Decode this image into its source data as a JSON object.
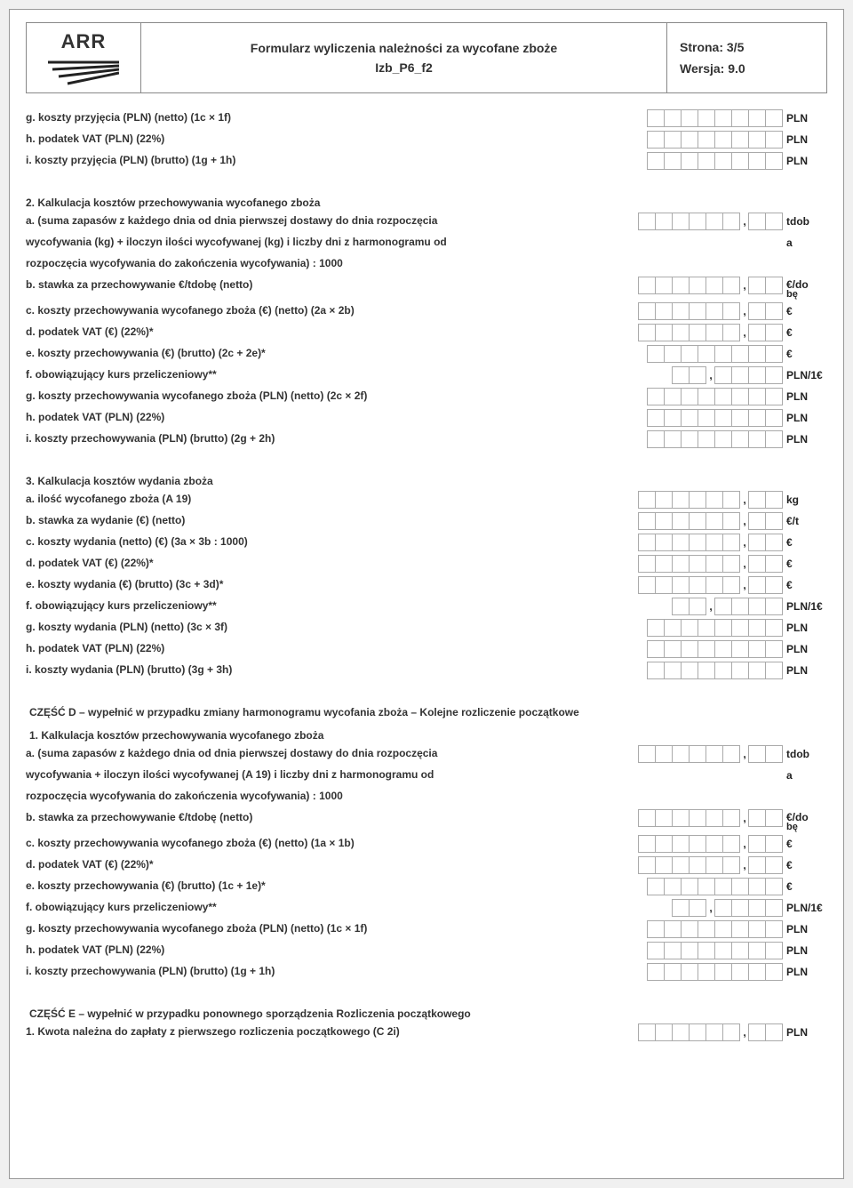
{
  "header": {
    "logo_text": "ARR",
    "title_line1": "Formularz wyliczenia należności za wycofane zboże",
    "title_line2": "Izb_P6_f2",
    "page_label": "Strona: 3/5",
    "version_label": "Wersja: 9.0"
  },
  "s1": {
    "g": "g. koszty przyjęcia (PLN) (netto) (1c × 1f)",
    "h": "h. podatek VAT (PLN) (22%)",
    "i": "i. koszty przyjęcia (PLN) (brutto) (1g + 1h)"
  },
  "s2": {
    "heading": "2. Kalkulacja kosztów przechowywania wycofanego zboża",
    "a1": "a. (suma zapasów z każdego dnia od dnia pierwszej dostawy do dnia rozpoczęcia",
    "a2": "wycofywania (kg) + iloczyn ilości wycofywanej (kg) i liczby dni z harmonogramu od",
    "a3": "rozpoczęcia wycofywania do zakończenia wycofywania) : 1000",
    "b": "b. stawka za przechowywanie €/tdobę (netto)",
    "c": "c. koszty przechowywania wycofanego zboża (€) (netto) (2a × 2b)",
    "d": "d. podatek VAT (€) (22%)*",
    "e": "e. koszty przechowywania (€) (brutto) (2c + 2e)*",
    "f": "f. obowiązujący kurs przeliczeniowy**",
    "g": "g. koszty przechowywania wycofanego zboża (PLN) (netto) (2c × 2f)",
    "h": "h. podatek VAT (PLN) (22%)",
    "i": "i. koszty przechowywania (PLN) (brutto) (2g + 2h)"
  },
  "s3": {
    "heading": "3. Kalkulacja kosztów wydania zboża",
    "a": "a. ilość wycofanego zboża (A 19)",
    "b": "b. stawka za wydanie (€) (netto)",
    "c": "c. koszty wydania (netto) (€) (3a × 3b : 1000)",
    "d": "d. podatek VAT (€) (22%)*",
    "e": "e. koszty wydania (€) (brutto) (3c + 3d)*",
    "f": "f. obowiązujący kurs przeliczeniowy**",
    "g": "g. koszty wydania (PLN) (netto) (3c × 3f)",
    "h": "h. podatek VAT (PLN) (22%)",
    "i": "i. koszty wydania (PLN) (brutto) (3g + 3h)"
  },
  "partD": {
    "heading": "CZĘŚĆ D – wypełnić w przypadku zmiany harmonogramu wycofania zboża – Kolejne rozliczenie początkowe",
    "sub": "1. Kalkulacja kosztów przechowywania wycofanego zboża",
    "a1": "a. (suma zapasów z każdego dnia od dnia pierwszej dostawy do dnia rozpoczęcia",
    "a2": "wycofywania + iloczyn ilości wycofywanej (A 19) i liczby dni z harmonogramu od",
    "a3": "rozpoczęcia wycofywania do zakończenia wycofywania) : 1000",
    "b": "b. stawka za przechowywanie €/tdobę (netto)",
    "c": "c. koszty przechowywania wycofanego zboża (€) (netto) (1a × 1b)",
    "d": "d. podatek VAT (€) (22%)*",
    "e": "e. koszty przechowywania (€) (brutto) (1c + 1e)*",
    "f": "f. obowiązujący kurs przeliczeniowy**",
    "g": "g. koszty przechowywania wycofanego zboża (PLN) (netto) (1c × 1f)",
    "h": "h. podatek VAT (PLN) (22%)",
    "i": "i. koszty przechowywania (PLN) (brutto) (1g + 1h)"
  },
  "partE": {
    "heading": "CZĘŚĆ E – wypełnić w przypadku ponownego sporządzenia Rozliczenia początkowego",
    "l1": "1. Kwota należna do zapłaty z pierwszego rozliczenia początkowego (C 2i)"
  },
  "units": {
    "pln": "PLN",
    "tdob": "tdob",
    "a": "a",
    "eurodo": "€/do",
    "be": "bę",
    "euro": "€",
    "pln1e": "PLN/1€",
    "kg": "kg",
    "eurot": "€/t"
  }
}
